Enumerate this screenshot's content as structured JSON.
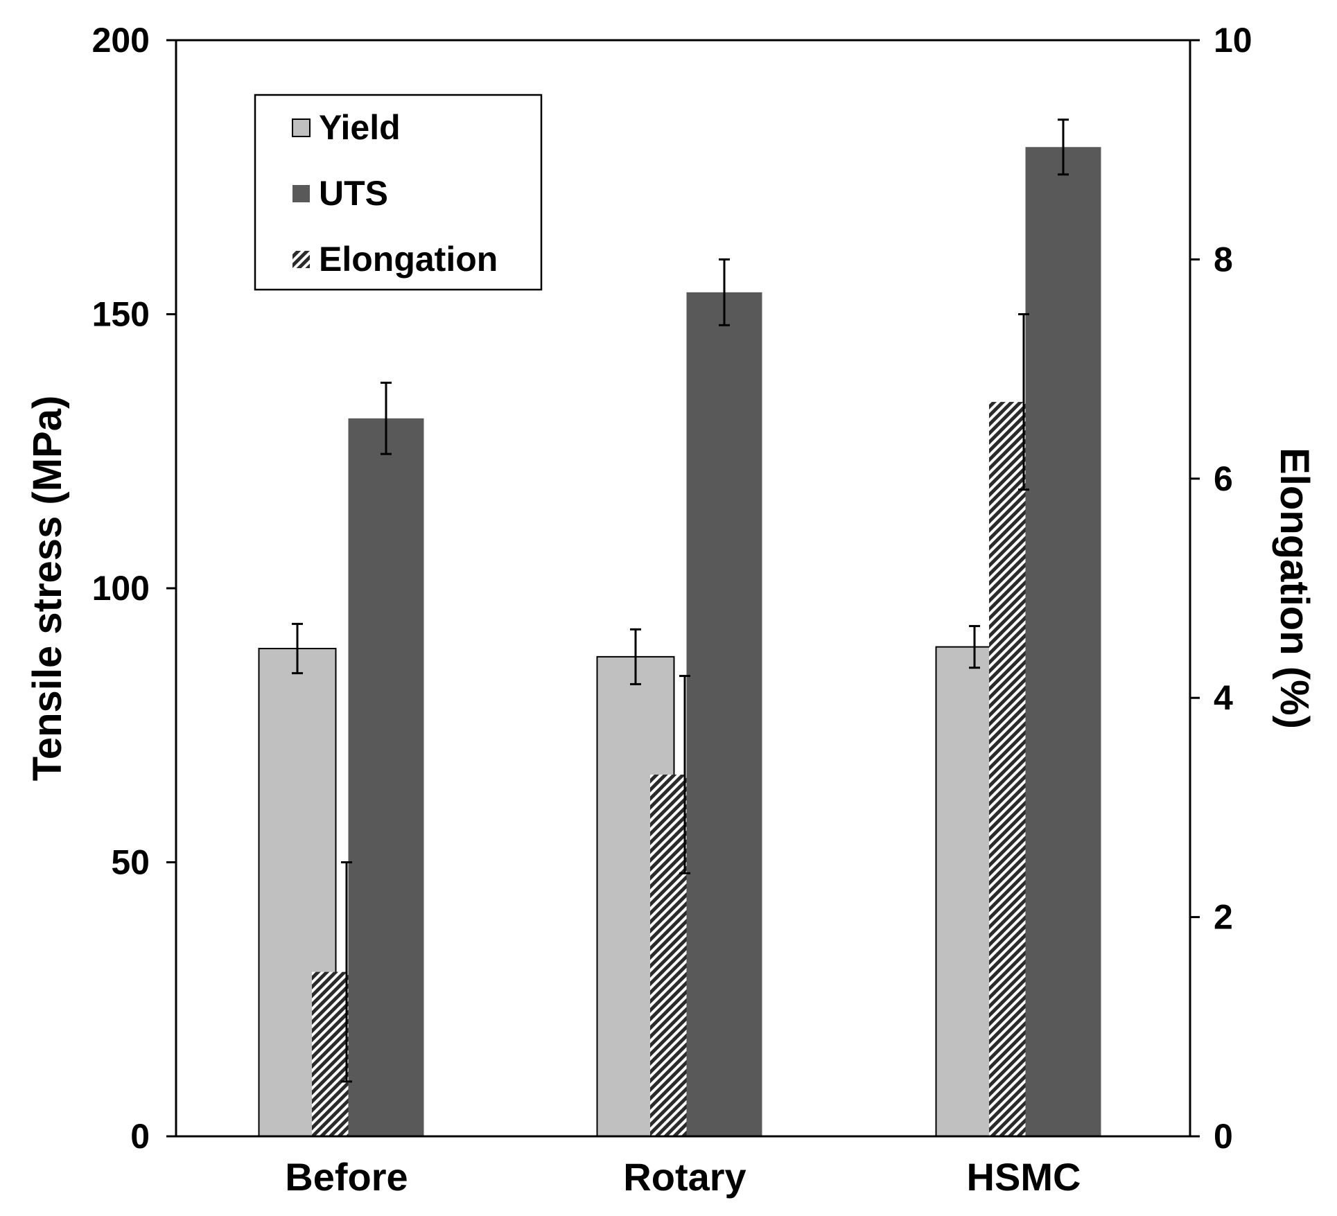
{
  "chart_data": {
    "type": "bar",
    "categories": [
      "Before",
      "Rotary",
      "HSMC"
    ],
    "left_axis": {
      "label": "Tensile stress (MPa)",
      "range": [
        0,
        200
      ],
      "ticks": [
        0,
        50,
        100,
        150,
        200
      ]
    },
    "right_axis": {
      "label": "Elongation (%)",
      "range": [
        0,
        10
      ],
      "ticks": [
        0,
        2,
        4,
        6,
        8,
        10
      ]
    },
    "series": [
      {
        "name": "Yield",
        "axis": "left",
        "color": "#c0c0c0",
        "pattern": "solid",
        "values": [
          89,
          87.5,
          89.3
        ],
        "errors": [
          4.5,
          5,
          3.8
        ]
      },
      {
        "name": "Elongation",
        "axis": "right",
        "color": "#404040",
        "pattern": "diagonal-hatch",
        "values": [
          1.5,
          3.3,
          6.7
        ],
        "errors": [
          1,
          0.9,
          0.8
        ]
      },
      {
        "name": "UTS",
        "axis": "left",
        "color": "#595959",
        "pattern": "solid",
        "values": [
          131,
          154,
          180.5
        ],
        "errors": [
          6.5,
          6,
          5
        ]
      }
    ],
    "legend": {
      "position": "top-left",
      "entries": [
        "Yield",
        "UTS",
        "Elongation"
      ]
    }
  }
}
